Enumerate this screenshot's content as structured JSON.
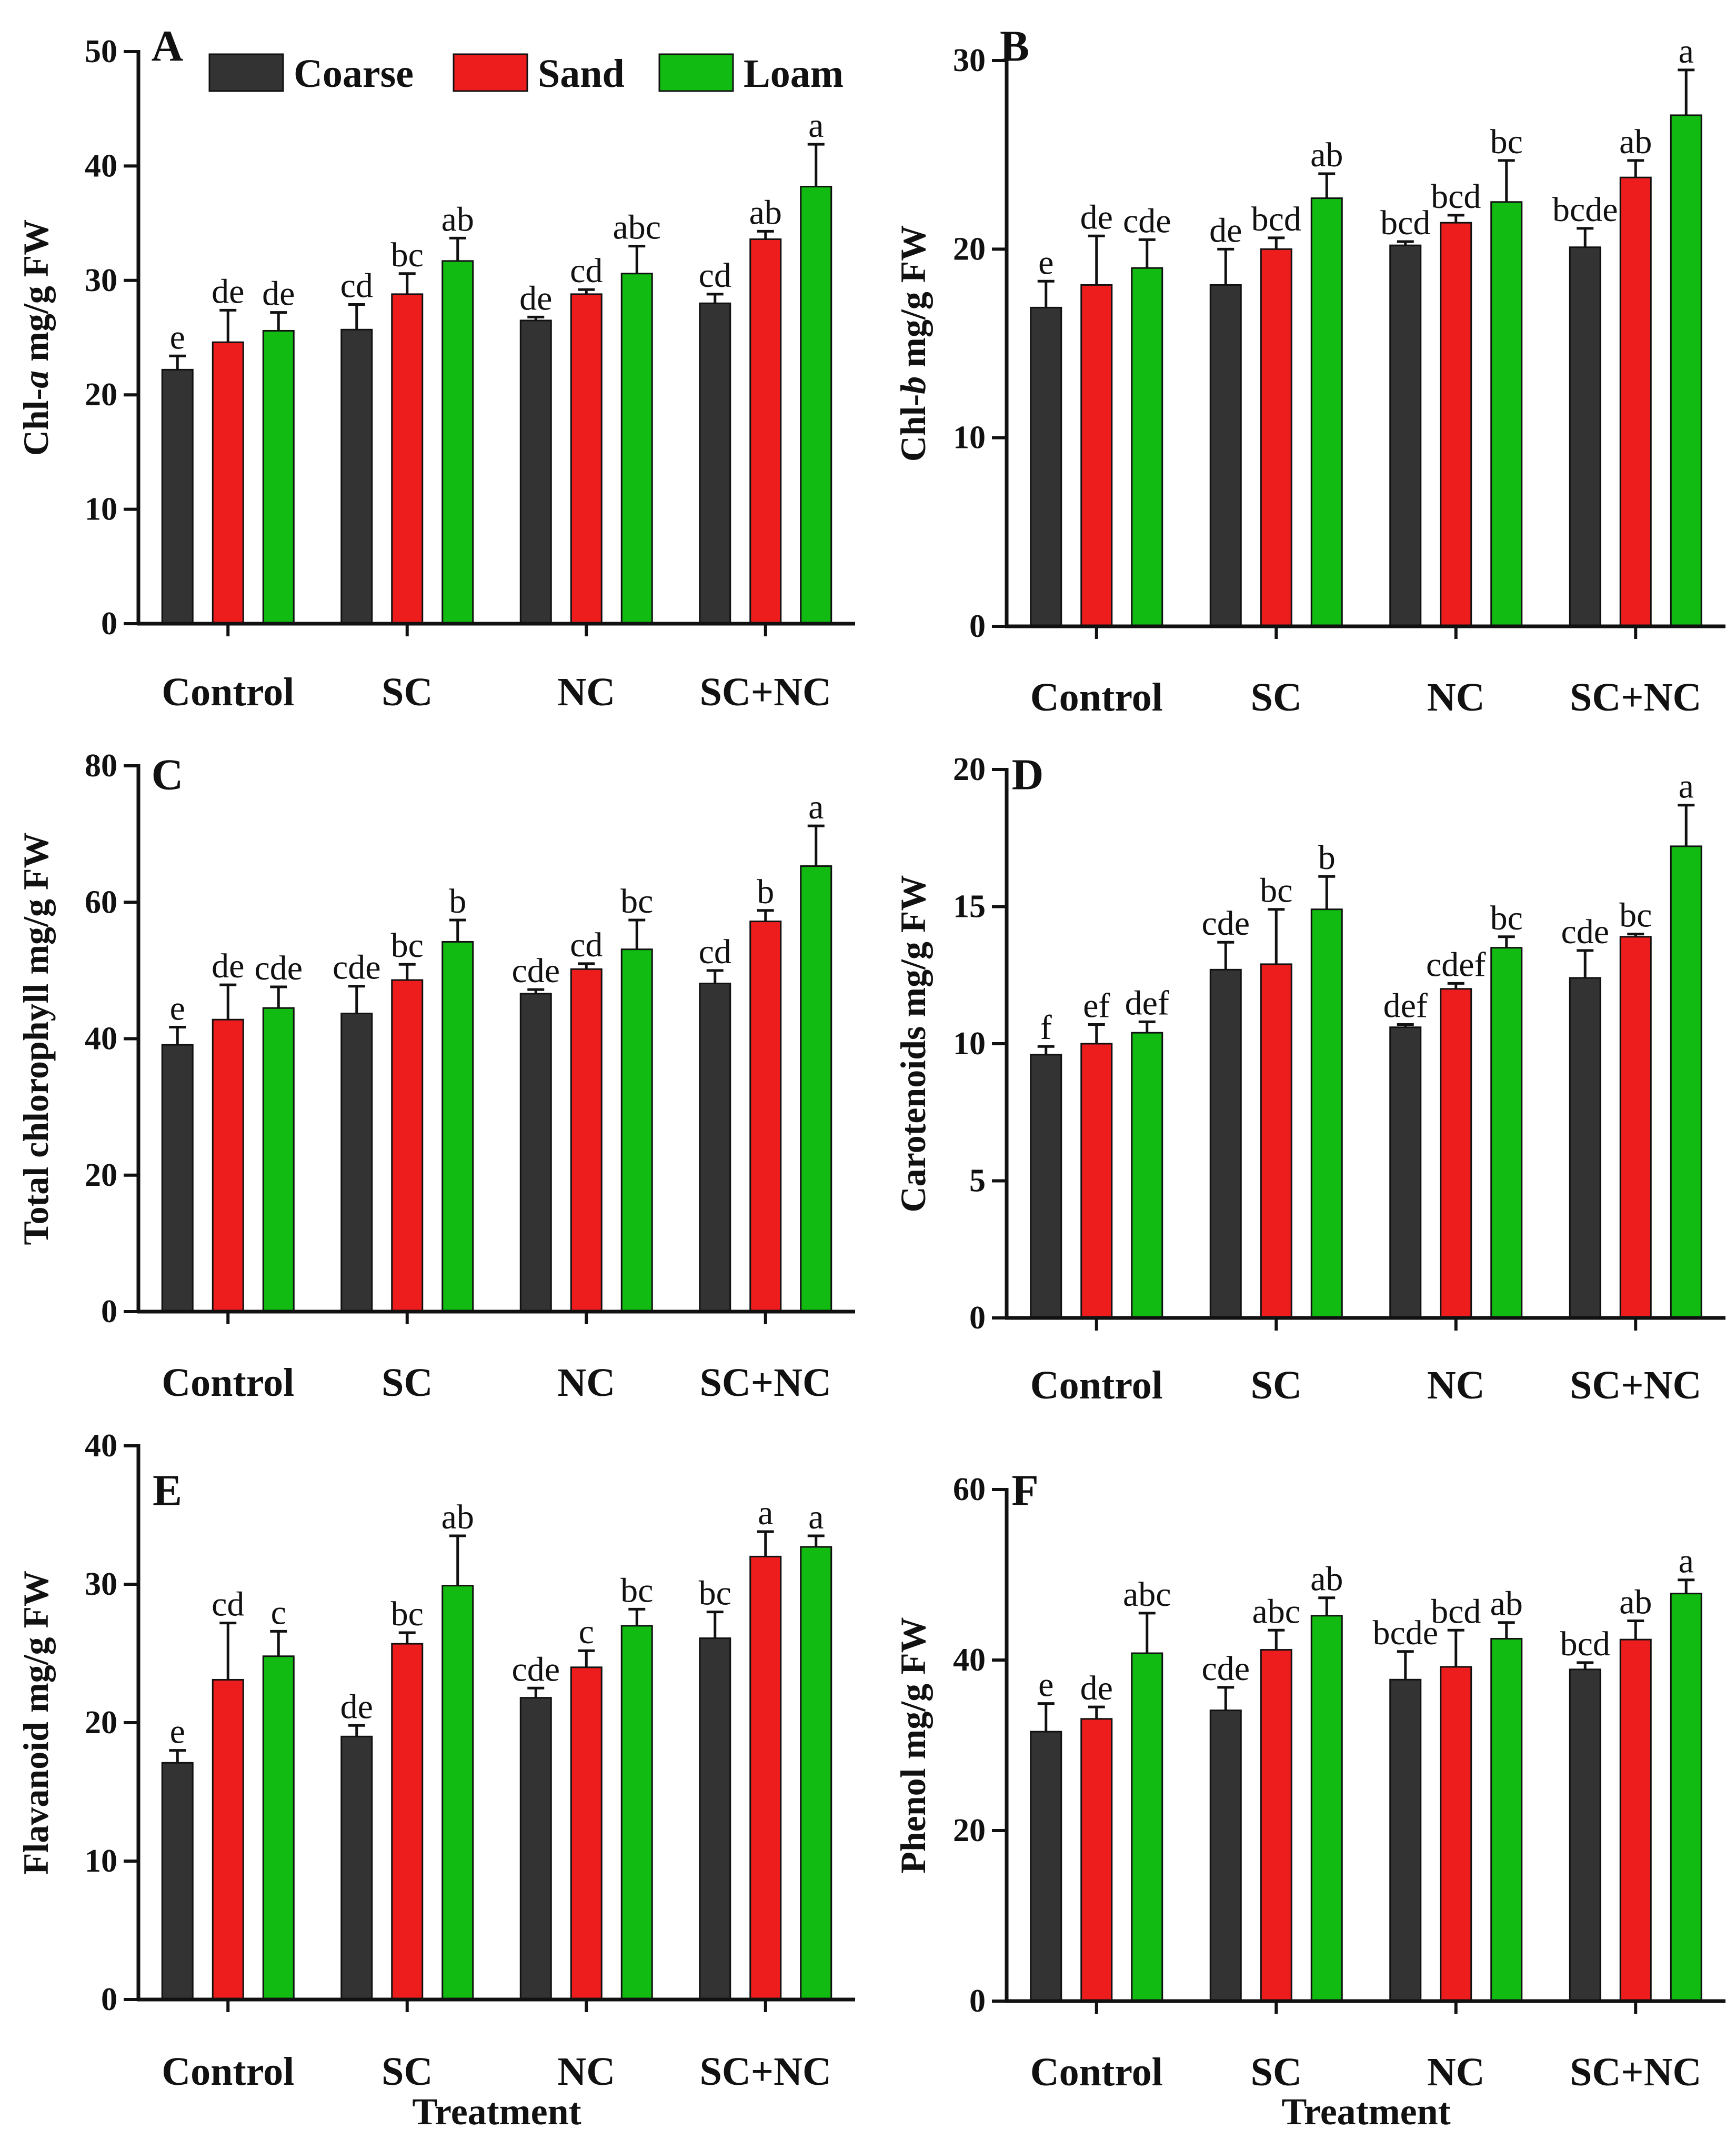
{
  "legend": [
    {
      "label": "Coarse",
      "color": "#333333"
    },
    {
      "label": "Sand",
      "color": "#ee1d1d"
    },
    {
      "label": "Loam",
      "color": "#11bb11"
    }
  ],
  "chart_data": [
    {
      "panel": "A",
      "type": "bar",
      "ylabel_pre": "Chl-",
      "ylabel_ital": "a",
      "ylabel_post": " mg/g FW",
      "xlabel": "",
      "ylim": [
        0,
        50
      ],
      "yticks": [
        0,
        10,
        20,
        30,
        40,
        50
      ],
      "categories": [
        "Control",
        "SC",
        "NC",
        "SC+NC"
      ],
      "series": [
        {
          "name": "Coarse",
          "values": [
            22.2,
            25.7,
            26.5,
            28.0
          ],
          "errors": [
            1.2,
            2.2,
            0.3,
            0.8
          ],
          "letters": [
            "e",
            "cd",
            "de",
            "cd"
          ]
        },
        {
          "name": "Sand",
          "values": [
            24.6,
            28.8,
            28.8,
            33.6
          ],
          "errors": [
            2.8,
            1.8,
            0.4,
            0.7
          ],
          "letters": [
            "de",
            "bc",
            "cd",
            "ab"
          ]
        },
        {
          "name": "Loam",
          "values": [
            25.6,
            31.7,
            30.6,
            38.2
          ],
          "errors": [
            1.6,
            2.0,
            2.4,
            3.7
          ],
          "letters": [
            "de",
            "ab",
            "abc",
            "a"
          ]
        }
      ]
    },
    {
      "panel": "B",
      "type": "bar",
      "ylabel_pre": "Chl-",
      "ylabel_ital": "b",
      "ylabel_post": " mg/g FW",
      "xlabel": "",
      "ylim": [
        0,
        30
      ],
      "yticks": [
        0,
        10,
        20,
        30
      ],
      "categories": [
        "Control",
        "SC",
        "NC",
        "SC+NC"
      ],
      "series": [
        {
          "name": "Coarse",
          "values": [
            16.9,
            18.1,
            20.2,
            20.1
          ],
          "errors": [
            1.4,
            1.9,
            0.2,
            1.0
          ],
          "letters": [
            "e",
            "de",
            "bcd",
            "bcde"
          ]
        },
        {
          "name": "Sand",
          "values": [
            18.1,
            20.0,
            21.4,
            23.8
          ],
          "errors": [
            2.6,
            0.6,
            0.4,
            0.9
          ],
          "letters": [
            "de",
            "bcd",
            "bcd",
            "ab"
          ]
        },
        {
          "name": "Loam",
          "values": [
            19.0,
            22.7,
            22.5,
            27.1
          ],
          "errors": [
            1.5,
            1.3,
            2.2,
            2.4
          ],
          "letters": [
            "cde",
            "ab",
            "bc",
            "a"
          ]
        }
      ]
    },
    {
      "panel": "C",
      "type": "bar",
      "ylabel_pre": "Total chlorophyll mg/g FW",
      "ylabel_ital": "",
      "ylabel_post": "",
      "xlabel": "",
      "ylim": [
        0,
        80
      ],
      "yticks": [
        0,
        20,
        40,
        60,
        80
      ],
      "categories": [
        "Control",
        "SC",
        "NC",
        "SC+NC"
      ],
      "series": [
        {
          "name": "Coarse",
          "values": [
            39.1,
            43.7,
            46.6,
            48.1
          ],
          "errors": [
            2.6,
            4.0,
            0.6,
            1.9
          ],
          "letters": [
            "e",
            "cde",
            "cde",
            "cd"
          ]
        },
        {
          "name": "Sand",
          "values": [
            42.8,
            48.6,
            50.2,
            57.2
          ],
          "errors": [
            5.1,
            2.3,
            0.8,
            1.6
          ],
          "letters": [
            "de",
            "bc",
            "cd",
            "b"
          ]
        },
        {
          "name": "Loam",
          "values": [
            44.5,
            54.2,
            53.1,
            65.3
          ],
          "errors": [
            3.1,
            3.2,
            4.3,
            5.9
          ],
          "letters": [
            "cde",
            "b",
            "bc",
            "a"
          ]
        }
      ]
    },
    {
      "panel": "D",
      "type": "bar",
      "ylabel_pre": "Carotenoids mg/g FW",
      "ylabel_ital": "",
      "ylabel_post": "",
      "xlabel": "",
      "ylim": [
        0,
        20
      ],
      "yticks": [
        0,
        5,
        10,
        15,
        20
      ],
      "categories": [
        "Control",
        "SC",
        "NC",
        "SC+NC"
      ],
      "series": [
        {
          "name": "Coarse",
          "values": [
            9.6,
            12.7,
            10.6,
            12.4
          ],
          "errors": [
            0.3,
            1.0,
            0.1,
            1.0
          ],
          "letters": [
            "f",
            "cde",
            "def",
            "cde"
          ]
        },
        {
          "name": "Sand",
          "values": [
            10.0,
            12.9,
            12.0,
            13.9
          ],
          "errors": [
            0.7,
            2.0,
            0.2,
            0.1
          ],
          "letters": [
            "ef",
            "bc",
            "cdef",
            "bc"
          ]
        },
        {
          "name": "Loam",
          "values": [
            10.4,
            14.9,
            13.5,
            17.2
          ],
          "errors": [
            0.4,
            1.2,
            0.4,
            1.5
          ],
          "letters": [
            "def",
            "b",
            "bc",
            "a"
          ]
        }
      ]
    },
    {
      "panel": "E",
      "type": "bar",
      "ylabel_pre": "Flavanoid mg/g FW",
      "ylabel_ital": "",
      "ylabel_post": "",
      "xlabel": "Treatment",
      "ylim": [
        0,
        40
      ],
      "yticks": [
        0,
        10,
        20,
        30,
        40
      ],
      "categories": [
        "Control",
        "SC",
        "NC",
        "SC+NC"
      ],
      "series": [
        {
          "name": "Coarse",
          "values": [
            17.1,
            19.0,
            21.8,
            26.1
          ],
          "errors": [
            0.9,
            0.8,
            0.7,
            1.9
          ],
          "letters": [
            "e",
            "de",
            "cde",
            "bc"
          ]
        },
        {
          "name": "Sand",
          "values": [
            23.1,
            25.7,
            24.0,
            32.0
          ],
          "errors": [
            4.1,
            0.8,
            1.2,
            1.8
          ],
          "letters": [
            "cd",
            "bc",
            "c",
            "a"
          ]
        },
        {
          "name": "Loam",
          "values": [
            24.8,
            29.9,
            27.0,
            32.7
          ],
          "errors": [
            1.8,
            3.6,
            1.2,
            0.8
          ],
          "letters": [
            "c",
            "ab",
            "bc",
            "a"
          ]
        }
      ]
    },
    {
      "panel": "F",
      "type": "bar",
      "ylabel_pre": "Phenol mg/g FW",
      "ylabel_ital": "",
      "ylabel_post": "",
      "xlabel": "Treatment",
      "ylim": [
        0,
        60
      ],
      "yticks": [
        0,
        20,
        40,
        60
      ],
      "categories": [
        "Control",
        "SC",
        "NC",
        "SC+NC"
      ],
      "series": [
        {
          "name": "Coarse",
          "values": [
            31.6,
            34.1,
            37.7,
            38.9
          ],
          "errors": [
            3.3,
            2.7,
            3.3,
            0.8
          ],
          "letters": [
            "e",
            "cde",
            "bcde",
            "bcd"
          ]
        },
        {
          "name": "Sand",
          "values": [
            33.1,
            41.2,
            39.2,
            42.4
          ],
          "errors": [
            1.4,
            2.3,
            4.3,
            2.2
          ],
          "letters": [
            "de",
            "abc",
            "bcd",
            "ab"
          ]
        },
        {
          "name": "Loam",
          "values": [
            40.8,
            45.2,
            42.5,
            47.8
          ],
          "errors": [
            4.7,
            2.1,
            1.9,
            1.6
          ],
          "letters": [
            "abc",
            "ab",
            "ab",
            "a"
          ]
        }
      ]
    }
  ]
}
